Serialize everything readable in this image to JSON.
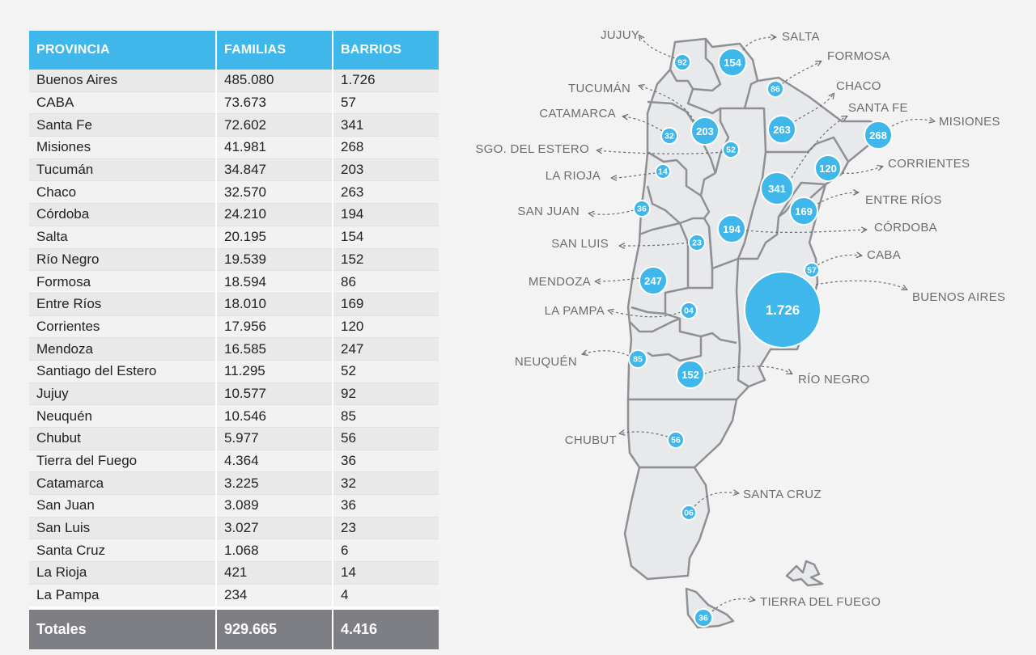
{
  "table": {
    "headers": {
      "provincia": "PROVINCIA",
      "familias": "FAMILIAS",
      "barrios": "BARRIOS"
    },
    "rows": [
      {
        "provincia": "Buenos Aires",
        "familias": "485.080",
        "barrios": "1.726"
      },
      {
        "provincia": "CABA",
        "familias": "73.673",
        "barrios": "57"
      },
      {
        "provincia": "Santa Fe",
        "familias": "72.602",
        "barrios": "341"
      },
      {
        "provincia": "Misiones",
        "familias": "41.981",
        "barrios": "268"
      },
      {
        "provincia": "Tucumán",
        "familias": "34.847",
        "barrios": "203"
      },
      {
        "provincia": "Chaco",
        "familias": "32.570",
        "barrios": "263"
      },
      {
        "provincia": "Córdoba",
        "familias": "24.210",
        "barrios": "194"
      },
      {
        "provincia": "Salta",
        "familias": "20.195",
        "barrios": "154"
      },
      {
        "provincia": "Río Negro",
        "familias": "19.539",
        "barrios": "152"
      },
      {
        "provincia": "Formosa",
        "familias": "18.594",
        "barrios": "86"
      },
      {
        "provincia": "Entre Ríos",
        "familias": "18.010",
        "barrios": "169"
      },
      {
        "provincia": "Corrientes",
        "familias": "17.956",
        "barrios": "120"
      },
      {
        "provincia": "Mendoza",
        "familias": "16.585",
        "barrios": "247"
      },
      {
        "provincia": "Santiago del Estero",
        "familias": "11.295",
        "barrios": "52"
      },
      {
        "provincia": "Jujuy",
        "familias": "10.577",
        "barrios": "92"
      },
      {
        "provincia": "Neuquén",
        "familias": "10.546",
        "barrios": "85"
      },
      {
        "provincia": "Chubut",
        "familias": "5.977",
        "barrios": "56"
      },
      {
        "provincia": "Tierra del Fuego",
        "familias": "4.364",
        "barrios": "36"
      },
      {
        "provincia": "Catamarca",
        "familias": "3.225",
        "barrios": "32"
      },
      {
        "provincia": "San Juan",
        "familias": "3.089",
        "barrios": "36"
      },
      {
        "provincia": "San Luis",
        "familias": "3.027",
        "barrios": "23"
      },
      {
        "provincia": "Santa Cruz",
        "familias": "1.068",
        "barrios": "6"
      },
      {
        "provincia": "La Rioja",
        "familias": "421",
        "barrios": "14"
      },
      {
        "provincia": "La Pampa",
        "familias": "234",
        "barrios": "4"
      }
    ],
    "totals": {
      "label": "Totales",
      "familias": "929.665",
      "barrios": "4.416"
    }
  },
  "map": {
    "colors": {
      "bubble": "#3fb7ea",
      "province_fill": "#e8e9eb",
      "border": "#8e9095",
      "label": "#6b6d72"
    },
    "bubbles": [
      {
        "id": "jujuy",
        "label": "JUJUY",
        "value": "92"
      },
      {
        "id": "salta",
        "label": "SALTA",
        "value": "154"
      },
      {
        "id": "formosa",
        "label": "FORMOSA",
        "value": "86"
      },
      {
        "id": "tucuman",
        "label": "TUCUMÁN",
        "value": "203"
      },
      {
        "id": "chaco",
        "label": "CHACO",
        "value": "263"
      },
      {
        "id": "catamarca",
        "label": "CATAMARCA",
        "value": "32"
      },
      {
        "id": "santa-fe",
        "label": "SANTA FE",
        "value": "341"
      },
      {
        "id": "misiones",
        "label": "MISIONES",
        "value": "268"
      },
      {
        "id": "sgo-del-estero",
        "label": "SGO. DEL ESTERO",
        "value": "52"
      },
      {
        "id": "la-rioja",
        "label": "LA RIOJA",
        "value": "14"
      },
      {
        "id": "corrientes",
        "label": "CORRIENTES",
        "value": "120"
      },
      {
        "id": "entre-rios",
        "label": "ENTRE RÍOS",
        "value": "169"
      },
      {
        "id": "san-juan",
        "label": "SAN JUAN",
        "value": "36"
      },
      {
        "id": "cordoba",
        "label": "CÓRDOBA",
        "value": "194"
      },
      {
        "id": "san-luis",
        "label": "SAN LUIS",
        "value": "23"
      },
      {
        "id": "caba",
        "label": "CABA",
        "value": "57"
      },
      {
        "id": "mendoza",
        "label": "MENDOZA",
        "value": "247"
      },
      {
        "id": "buenos-aires",
        "label": "BUENOS AIRES",
        "value": "1.726"
      },
      {
        "id": "la-pampa",
        "label": "LA PAMPA",
        "value": "04"
      },
      {
        "id": "neuquen",
        "label": "NEUQUÉN",
        "value": "85"
      },
      {
        "id": "rio-negro",
        "label": "RÍO NEGRO",
        "value": "152"
      },
      {
        "id": "chubut",
        "label": "CHUBUT",
        "value": "56"
      },
      {
        "id": "santa-cruz",
        "label": "SANTA CRUZ",
        "value": "06"
      },
      {
        "id": "tierra-del-fuego",
        "label": "TIERRA DEL FUEGO",
        "value": "36"
      }
    ]
  }
}
